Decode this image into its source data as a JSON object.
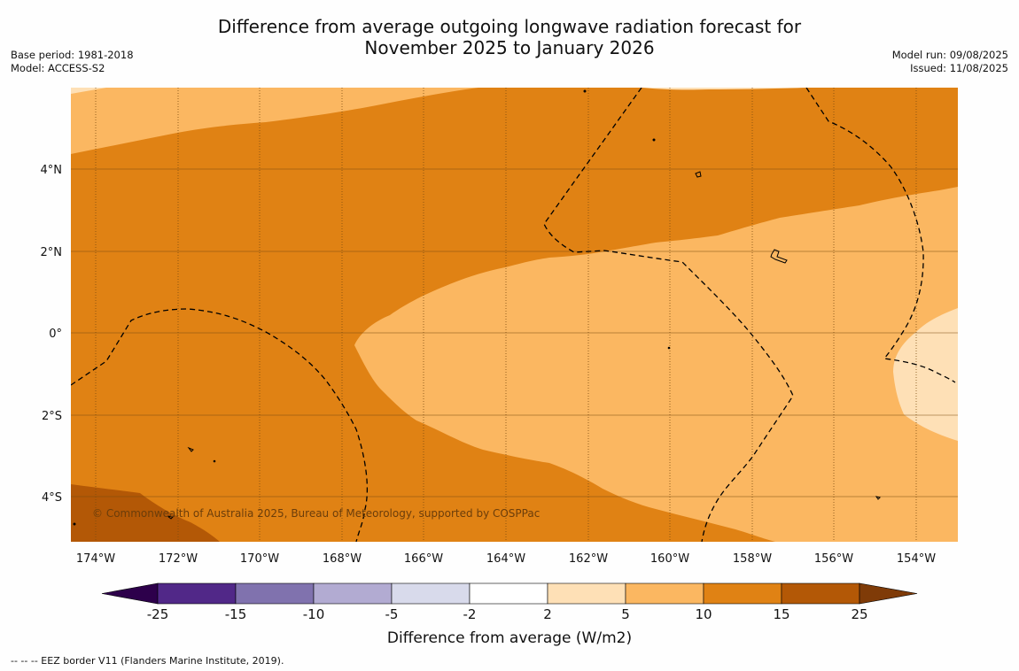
{
  "title_line1": "Difference from average outgoing longwave radiation forecast for",
  "title_line2": "November 2025 to January 2026",
  "base_period": "Base period: 1981-2018",
  "model": "Model: ACCESS-S2",
  "model_run": "Model run: 09/08/2025",
  "issued": "Issued: 11/08/2025",
  "copyright": "© Commonwealth of Australia 2025, Bureau of Meteorology, supported by COSPPac",
  "lon_labels": [
    "174°W",
    "172°W",
    "170°W",
    "168°W",
    "166°W",
    "164°W",
    "162°W",
    "160°W",
    "158°W",
    "156°W",
    "154°W"
  ],
  "lat_labels": [
    "4°N",
    "2°N",
    "0°",
    "2°S",
    "4°S"
  ],
  "colorbar": {
    "label": "Difference from average (W/m2)",
    "ticks": [
      "-25",
      "-15",
      "-10",
      "-5",
      "-2",
      "2",
      "5",
      "10",
      "15",
      "25"
    ],
    "colors": [
      "#512888",
      "#8072ae",
      "#b2abd2",
      "#d8daeb",
      "#ffffff",
      "#fee0b6",
      "#fbb761",
      "#e08214",
      "#b35806"
    ],
    "under_color": "#2d004b",
    "over_color": "#7f3b08"
  },
  "footnote": "--  --  -- EEZ border V11 (Flanders Marine Institute, 2019)."
}
